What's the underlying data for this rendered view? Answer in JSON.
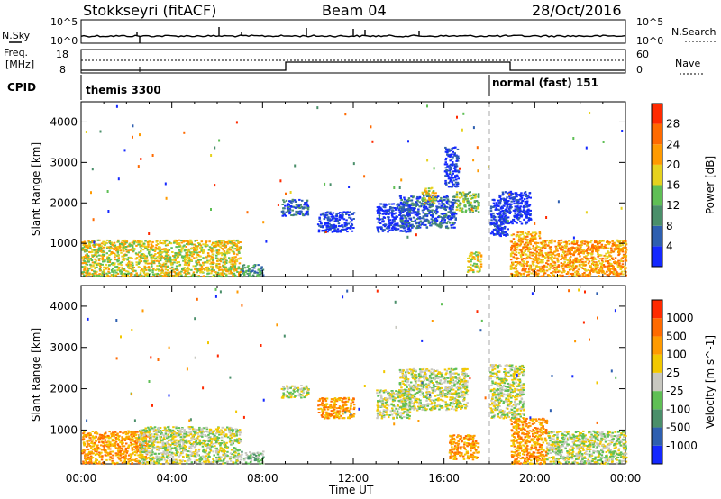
{
  "header": {
    "station": "Stokkseyri (fitACF)",
    "beam": "Beam 04",
    "date": "28/Oct/2016"
  },
  "strips": {
    "nsky_label": "N.Sky",
    "nsky_tick_top": "10^5",
    "nsky_tick_bottom": "10^0",
    "nsearch_label": "N.Search",
    "nsearch_tick_top": "10^5",
    "nsearch_tick_bottom": "10^0",
    "freq_label": "Freq.",
    "freq_unit": "[MHz]",
    "freq_tick_top": "18",
    "freq_tick_bottom": "8",
    "nave_label": "Nave",
    "nave_tick_top": "60",
    "nave_tick_bottom": "0",
    "cpid_label": "CPID",
    "cpid_modes": [
      {
        "name": "themis 3300",
        "start_hour": 0
      },
      {
        "name": "normal (fast) 151",
        "start_hour": 18
      }
    ]
  },
  "chart_data": [
    {
      "type": "heatmap",
      "panel": "power",
      "ylabel": "Slant Range [km]",
      "xlabel": "",
      "x_ticks": [
        "00:00",
        "04:00",
        "08:00",
        "12:00",
        "16:00",
        "20:00",
        "00:00"
      ],
      "x_range_hours": [
        0,
        24
      ],
      "y_ticks": [
        "1000",
        "2000",
        "3000",
        "4000"
      ],
      "y_range_km": [
        180,
        4500
      ],
      "colorbar": {
        "label": "Power [dB]",
        "ticks": [
          "4",
          "8",
          "12",
          "16",
          "20",
          "24",
          "28"
        ],
        "colors": [
          "#1428ff",
          "#2e5fb0",
          "#4a8f6a",
          "#5fbf55",
          "#e6d21e",
          "#ff9a00",
          "#ff6a00",
          "#ff2a00"
        ]
      },
      "regions": [
        {
          "h0": 0.0,
          "h1": 7.0,
          "r0": 200,
          "r1": 1100,
          "level": 4
        },
        {
          "h0": 7.0,
          "h1": 8.0,
          "r0": 200,
          "r1": 500,
          "level": 2
        },
        {
          "h0": 8.8,
          "h1": 10.0,
          "r0": 1700,
          "r1": 2100,
          "level": 1
        },
        {
          "h0": 10.4,
          "h1": 12.0,
          "r0": 1300,
          "r1": 1800,
          "level": 0
        },
        {
          "h0": 13.0,
          "h1": 14.5,
          "r0": 1300,
          "r1": 2000,
          "level": 0
        },
        {
          "h0": 14.0,
          "h1": 16.5,
          "r0": 1400,
          "r1": 2200,
          "level": 1
        },
        {
          "h0": 15.0,
          "h1": 15.6,
          "r0": 2000,
          "r1": 2400,
          "level": 4
        },
        {
          "h0": 16.0,
          "h1": 16.6,
          "r0": 2400,
          "r1": 3400,
          "level": 0
        },
        {
          "h0": 16.5,
          "h1": 17.5,
          "r0": 1800,
          "r1": 2300,
          "level": 3
        },
        {
          "h0": 17.0,
          "h1": 17.6,
          "r0": 300,
          "r1": 800,
          "level": 4
        },
        {
          "h0": 18.0,
          "h1": 18.8,
          "r0": 1200,
          "r1": 2100,
          "level": 0
        },
        {
          "h0": 18.4,
          "h1": 19.8,
          "r0": 1500,
          "r1": 2300,
          "level": 0
        },
        {
          "h0": 18.9,
          "h1": 20.2,
          "r0": 200,
          "r1": 1300,
          "level": 5
        },
        {
          "h0": 20.2,
          "h1": 24.0,
          "r0": 200,
          "r1": 1100,
          "level": 5
        }
      ]
    },
    {
      "type": "heatmap",
      "panel": "velocity",
      "ylabel": "Slant Range [km]",
      "xlabel": "Time UT",
      "x_ticks": [
        "00:00",
        "04:00",
        "08:00",
        "12:00",
        "16:00",
        "20:00",
        "00:00"
      ],
      "x_range_hours": [
        0,
        24
      ],
      "y_ticks": [
        "1000",
        "2000",
        "3000",
        "4000"
      ],
      "y_range_km": [
        180,
        4500
      ],
      "colorbar": {
        "label": "Velocity [m s^-1]",
        "ticks": [
          "1000",
          "500",
          "100",
          "25",
          "-25",
          "-100",
          "-500",
          "-1000"
        ],
        "colors": [
          "#1428ff",
          "#2e5fb0",
          "#4a8f6a",
          "#5fbf55",
          "#c8c8c0",
          "#f2c800",
          "#ff9a00",
          "#ff6a00",
          "#ff2a00"
        ]
      },
      "regions": [
        {
          "h0": 0.0,
          "h1": 3.0,
          "r0": 200,
          "r1": 1000,
          "level": 6
        },
        {
          "h0": 2.5,
          "h1": 7.0,
          "r0": 200,
          "r1": 1100,
          "level": 4
        },
        {
          "h0": 7.0,
          "h1": 8.0,
          "r0": 200,
          "r1": 500,
          "level": 3
        },
        {
          "h0": 8.8,
          "h1": 10.0,
          "r0": 1800,
          "r1": 2100,
          "level": 4
        },
        {
          "h0": 10.4,
          "h1": 12.0,
          "r0": 1300,
          "r1": 1800,
          "level": 6
        },
        {
          "h0": 13.0,
          "h1": 14.5,
          "r0": 1300,
          "r1": 2000,
          "level": 4
        },
        {
          "h0": 14.0,
          "h1": 17.0,
          "r0": 1500,
          "r1": 2500,
          "level": 4
        },
        {
          "h0": 16.2,
          "h1": 17.5,
          "r0": 300,
          "r1": 900,
          "level": 6
        },
        {
          "h0": 18.0,
          "h1": 19.5,
          "r0": 1300,
          "r1": 2600,
          "level": 4
        },
        {
          "h0": 18.9,
          "h1": 20.5,
          "r0": 200,
          "r1": 1300,
          "level": 6
        },
        {
          "h0": 20.5,
          "h1": 24.0,
          "r0": 200,
          "r1": 1000,
          "level": 4
        }
      ]
    }
  ]
}
